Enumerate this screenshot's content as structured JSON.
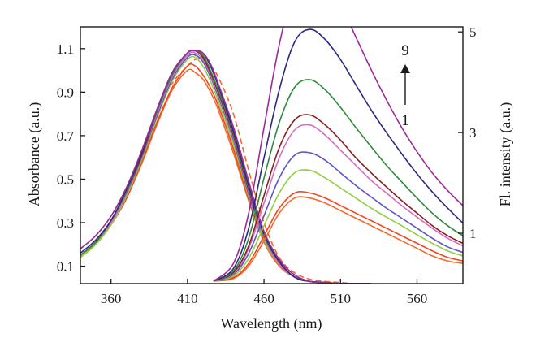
{
  "chart_data": {
    "type": "line",
    "xlabel": "Wavelength (nm)",
    "ylabel_left": "Absorbance (a.u.)",
    "ylabel_right": "Fl. intensity (a.u.)",
    "xlim": [
      340,
      590
    ],
    "ylim_left": [
      0.02,
      1.2
    ],
    "ylim_right": [
      0,
      5.1
    ],
    "x_ticks": [
      360,
      410,
      460,
      510,
      560
    ],
    "y_left_ticks": [
      0.1,
      0.3,
      0.5,
      0.7,
      0.9,
      1.1
    ],
    "y_right_ticks": [
      1,
      3,
      5
    ],
    "grid": false,
    "annotation": {
      "top": "9",
      "bottom": "1"
    },
    "absorbance": {
      "x": [
        340,
        350,
        360,
        370,
        380,
        390,
        400,
        410,
        415,
        420,
        425,
        430,
        440,
        450,
        460,
        470,
        480,
        490,
        500,
        510,
        520,
        530
      ],
      "series": [
        {
          "color": "#f26a2e",
          "dashed": true,
          "values": [
            0.18,
            0.24,
            0.33,
            0.46,
            0.62,
            0.8,
            0.94,
            1.02,
            1.05,
            1.05,
            1.02,
            0.97,
            0.8,
            0.54,
            0.3,
            0.14,
            0.07,
            0.04,
            0.03,
            0.025,
            0.02,
            0.02
          ]
        },
        {
          "color": "#f26a2e",
          "dashed": false,
          "values": [
            0.14,
            0.2,
            0.29,
            0.41,
            0.57,
            0.75,
            0.91,
            1.0,
            0.99,
            0.96,
            0.9,
            0.82,
            0.62,
            0.4,
            0.21,
            0.1,
            0.05,
            0.03,
            0.025,
            0.02,
            0.02,
            0.02
          ]
        },
        {
          "color": "#f24520",
          "dashed": false,
          "values": [
            0.14,
            0.2,
            0.29,
            0.41,
            0.58,
            0.76,
            0.92,
            1.02,
            1.02,
            0.98,
            0.92,
            0.84,
            0.64,
            0.41,
            0.22,
            0.11,
            0.05,
            0.03,
            0.025,
            0.02,
            0.02,
            0.02
          ]
        },
        {
          "color": "#8fd13f",
          "dashed": false,
          "values": [
            0.14,
            0.2,
            0.29,
            0.42,
            0.59,
            0.78,
            0.95,
            1.05,
            1.06,
            1.02,
            0.95,
            0.86,
            0.66,
            0.42,
            0.22,
            0.11,
            0.05,
            0.03,
            0.025,
            0.02,
            0.02,
            0.02
          ]
        },
        {
          "color": "#5a55c8",
          "dashed": false,
          "values": [
            0.15,
            0.21,
            0.3,
            0.43,
            0.6,
            0.79,
            0.96,
            1.06,
            1.07,
            1.04,
            0.97,
            0.88,
            0.68,
            0.43,
            0.23,
            0.11,
            0.05,
            0.03,
            0.025,
            0.02,
            0.02,
            0.02
          ]
        },
        {
          "color": "#d76bc4",
          "dashed": false,
          "values": [
            0.15,
            0.21,
            0.3,
            0.43,
            0.61,
            0.8,
            0.97,
            1.07,
            1.08,
            1.05,
            0.98,
            0.89,
            0.69,
            0.44,
            0.23,
            0.11,
            0.05,
            0.03,
            0.025,
            0.02,
            0.02,
            0.02
          ]
        },
        {
          "color": "#8a1e1e",
          "dashed": false,
          "values": [
            0.15,
            0.21,
            0.31,
            0.44,
            0.61,
            0.81,
            0.98,
            1.08,
            1.09,
            1.06,
            0.99,
            0.9,
            0.7,
            0.45,
            0.24,
            0.12,
            0.05,
            0.03,
            0.025,
            0.02,
            0.02,
            0.02
          ]
        },
        {
          "color": "#2e8a3a",
          "dashed": false,
          "values": [
            0.15,
            0.21,
            0.31,
            0.44,
            0.62,
            0.81,
            0.98,
            1.08,
            1.09,
            1.07,
            1.0,
            0.91,
            0.71,
            0.46,
            0.24,
            0.12,
            0.05,
            0.03,
            0.025,
            0.02,
            0.02,
            0.02
          ]
        },
        {
          "color": "#2a2a80",
          "dashed": false,
          "values": [
            0.16,
            0.22,
            0.31,
            0.45,
            0.62,
            0.82,
            0.99,
            1.08,
            1.09,
            1.08,
            1.02,
            0.93,
            0.72,
            0.47,
            0.25,
            0.12,
            0.05,
            0.03,
            0.025,
            0.02,
            0.02,
            0.02
          ]
        },
        {
          "color": "#9b2a9b",
          "dashed": false,
          "values": [
            0.18,
            0.24,
            0.33,
            0.46,
            0.63,
            0.82,
            0.99,
            1.08,
            1.09,
            1.08,
            1.03,
            0.94,
            0.74,
            0.49,
            0.26,
            0.13,
            0.06,
            0.03,
            0.025,
            0.02,
            0.02,
            0.02
          ]
        }
      ]
    },
    "fluorescence": {
      "x": [
        427,
        440,
        450,
        460,
        470,
        480,
        490,
        500,
        510,
        520,
        530,
        540,
        550,
        560,
        570,
        580,
        590
      ],
      "series": [
        {
          "color": "#f26a2e",
          "values": [
            0.05,
            0.1,
            0.35,
            0.85,
            1.4,
            1.7,
            1.7,
            1.6,
            1.45,
            1.3,
            1.15,
            1.0,
            0.85,
            0.7,
            0.55,
            0.45,
            0.4
          ]
        },
        {
          "color": "#f24520",
          "values": [
            0.05,
            0.12,
            0.4,
            0.95,
            1.5,
            1.8,
            1.8,
            1.7,
            1.55,
            1.4,
            1.25,
            1.1,
            0.95,
            0.8,
            0.65,
            0.52,
            0.45
          ]
        },
        {
          "color": "#8fd13f",
          "values": [
            0.05,
            0.15,
            0.5,
            1.15,
            1.8,
            2.2,
            2.25,
            2.1,
            1.9,
            1.7,
            1.5,
            1.32,
            1.15,
            0.97,
            0.8,
            0.65,
            0.55
          ]
        },
        {
          "color": "#5a55c8",
          "values": [
            0.05,
            0.18,
            0.6,
            1.35,
            2.1,
            2.55,
            2.6,
            2.45,
            2.2,
            1.95,
            1.72,
            1.5,
            1.3,
            1.1,
            0.9,
            0.73,
            0.62
          ]
        },
        {
          "color": "#d76bc4",
          "values": [
            0.05,
            0.2,
            0.7,
            1.6,
            2.5,
            3.05,
            3.15,
            2.95,
            2.65,
            2.35,
            2.05,
            1.8,
            1.55,
            1.32,
            1.1,
            0.9,
            0.75
          ]
        },
        {
          "color": "#8a1e1e",
          "values": [
            0.05,
            0.22,
            0.75,
            1.75,
            2.7,
            3.25,
            3.35,
            3.15,
            2.85,
            2.5,
            2.2,
            1.92,
            1.65,
            1.4,
            1.15,
            0.95,
            0.8
          ]
        },
        {
          "color": "#2e8a3a",
          "values": [
            0.05,
            0.25,
            0.9,
            2.1,
            3.2,
            3.9,
            4.05,
            3.85,
            3.5,
            3.1,
            2.72,
            2.35,
            2.02,
            1.7,
            1.4,
            1.15,
            0.95
          ]
        },
        {
          "color": "#2a2a80",
          "values": [
            0.05,
            0.3,
            1.1,
            2.5,
            3.85,
            4.8,
            5.05,
            4.85,
            4.45,
            3.95,
            3.45,
            3.0,
            2.58,
            2.18,
            1.82,
            1.5,
            1.2
          ]
        },
        {
          "color": "#9b2a9b",
          "values": [
            0.05,
            0.4,
            1.4,
            3.1,
            4.75,
            5.9,
            6.25,
            6.05,
            5.55,
            4.9,
            4.25,
            3.65,
            3.1,
            2.62,
            2.2,
            1.85,
            1.55
          ]
        }
      ]
    }
  }
}
